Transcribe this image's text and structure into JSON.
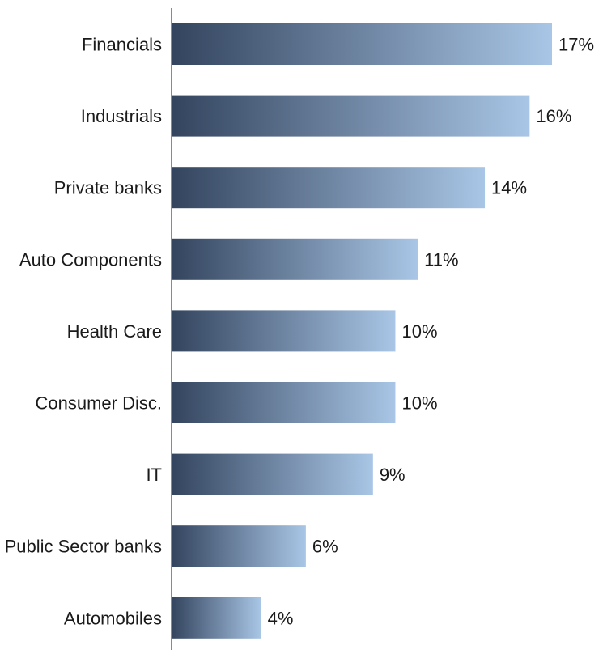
{
  "chart_data": {
    "type": "bar",
    "orientation": "horizontal",
    "categories": [
      "Financials",
      "Industrials",
      "Private banks",
      "Auto Components",
      "Health Care",
      "Consumer Disc.",
      "IT",
      "Public Sector banks",
      "Automobiles"
    ],
    "values": [
      17,
      16,
      14,
      11,
      10,
      10,
      9,
      6,
      4
    ],
    "value_labels": [
      "17%",
      "16%",
      "14%",
      "11%",
      "10%",
      "10%",
      "9%",
      "6%",
      "4%"
    ],
    "xlim": [
      0,
      17
    ],
    "grid": false,
    "legend": "none",
    "colors": {
      "bar_gradient_start": "#33445e",
      "bar_gradient_end": "#a9c6e6",
      "axis": "#8a8a8a",
      "text": "#1a1a1a"
    }
  }
}
